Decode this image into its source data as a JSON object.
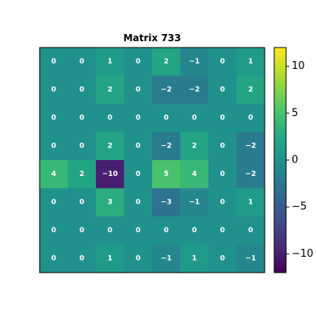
{
  "chart_data": {
    "type": "heatmap",
    "title": "Matrix 733",
    "matrix": [
      [
        0,
        0,
        1,
        0,
        2,
        -1,
        0,
        1
      ],
      [
        0,
        0,
        2,
        0,
        -2,
        -2,
        0,
        2
      ],
      [
        0,
        0,
        0,
        0,
        0,
        0,
        0,
        0
      ],
      [
        0,
        0,
        2,
        0,
        -2,
        2,
        0,
        -2
      ],
      [
        4,
        2,
        -10,
        0,
        5,
        4,
        0,
        -2
      ],
      [
        0,
        0,
        3,
        0,
        -3,
        -1,
        0,
        1
      ],
      [
        0,
        0,
        0,
        0,
        0,
        0,
        0,
        0
      ],
      [
        0,
        0,
        1,
        0,
        -1,
        1,
        0,
        -1
      ]
    ],
    "value_range": [
      -12,
      12
    ],
    "colormap": "viridis",
    "colorbar": {
      "ticks": [
        10,
        5,
        0,
        -5,
        -10
      ],
      "tick_labels": [
        "10",
        "5",
        "0",
        "−5",
        "−10"
      ]
    },
    "annotations": "cell values shown in bold white",
    "xticks": "none",
    "yticks": "none"
  }
}
